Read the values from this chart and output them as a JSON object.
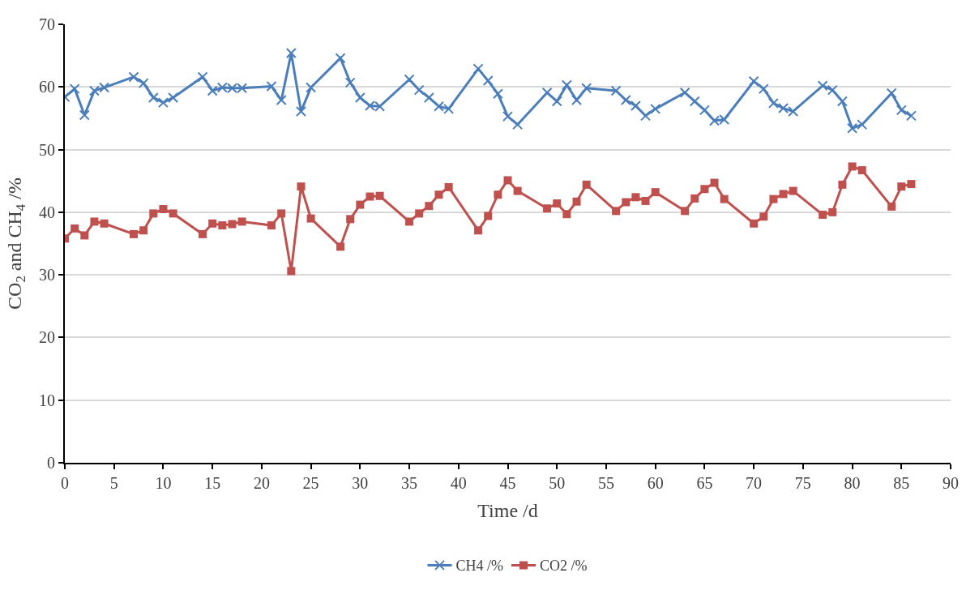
{
  "chart_data": {
    "type": "line",
    "xlabel": "Time /d",
    "ylabel": "CO$_{2}$ and CH$_{4}$ /%",
    "x": [
      0,
      1,
      2,
      3,
      4,
      7,
      8,
      9,
      10,
      11,
      14,
      15,
      16,
      17,
      18,
      21,
      22,
      23,
      24,
      25,
      28,
      29,
      30,
      31,
      32,
      35,
      36,
      37,
      38,
      39,
      42,
      43,
      44,
      45,
      46,
      49,
      50,
      51,
      52,
      53,
      56,
      57,
      58,
      59,
      60,
      63,
      64,
      65,
      66,
      67,
      70,
      71,
      72,
      73,
      74,
      77,
      78,
      79,
      80,
      81,
      84,
      85,
      86
    ],
    "series": [
      {
        "name": "CH4 /%",
        "color": "#4a7ebb",
        "marker": "cross",
        "values": [
          58.4,
          59.7,
          55.5,
          59.4,
          59.9,
          61.6,
          60.6,
          58.3,
          57.5,
          58.3,
          61.6,
          59.4,
          59.9,
          59.8,
          59.8,
          60.1,
          57.9,
          65.4,
          56.1,
          59.9,
          64.6,
          60.7,
          58.3,
          57.0,
          56.9,
          61.2,
          59.5,
          58.3,
          56.9,
          56.5,
          62.9,
          61.0,
          58.9,
          55.3,
          54.0,
          59.1,
          57.7,
          60.3,
          57.9,
          59.8,
          59.4,
          57.9,
          57.0,
          55.4,
          56.5,
          59.1,
          57.7,
          56.3,
          54.6,
          54.8,
          60.9,
          59.7,
          57.4,
          56.6,
          56.1,
          60.2,
          59.5,
          57.7,
          53.4,
          54.0,
          59.0,
          56.3,
          55.4
        ]
      },
      {
        "name": "CO2 /%",
        "color": "#c0504d",
        "marker": "square",
        "values": [
          35.8,
          37.4,
          36.3,
          38.5,
          38.2,
          36.5,
          37.1,
          39.8,
          40.5,
          39.8,
          36.5,
          38.2,
          37.9,
          38.1,
          38.5,
          37.9,
          39.8,
          30.6,
          44.1,
          39.0,
          34.5,
          38.9,
          41.2,
          42.5,
          42.6,
          38.5,
          39.8,
          41.0,
          42.8,
          44.0,
          37.1,
          39.4,
          42.8,
          45.1,
          43.4,
          40.6,
          41.4,
          39.7,
          41.7,
          44.4,
          40.2,
          41.6,
          42.4,
          41.8,
          43.2,
          40.2,
          42.2,
          43.7,
          44.7,
          42.1,
          38.2,
          39.3,
          42.1,
          42.9,
          43.4,
          39.6,
          40.0,
          44.4,
          47.3,
          46.7,
          40.9,
          44.1,
          44.5
        ]
      }
    ],
    "xlim": [
      0,
      90
    ],
    "xticks": [
      0,
      5,
      10,
      15,
      20,
      25,
      30,
      35,
      40,
      45,
      50,
      55,
      60,
      65,
      70,
      75,
      80,
      85,
      90
    ],
    "ylim": [
      0,
      70
    ],
    "yticks": [
      0,
      10,
      20,
      30,
      40,
      50,
      60,
      70
    ],
    "grid": "y",
    "legend": "bottom",
    "line_style": "solid"
  }
}
